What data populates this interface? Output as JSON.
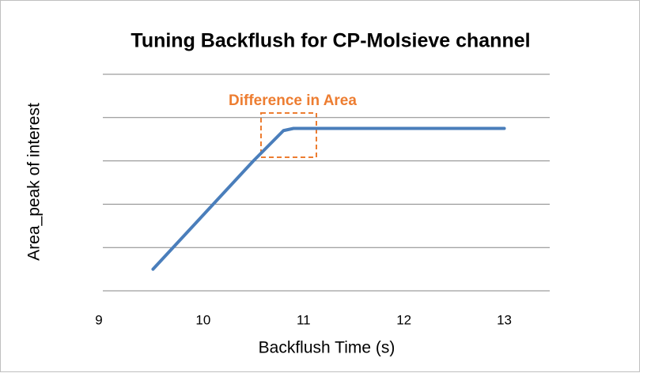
{
  "chart_data": {
    "type": "line",
    "title": "Tuning Backflush for CP-Molsieve channel",
    "x_label": "Backflush Time (s)",
    "y_label": "Area_peak of interest",
    "annotation": "Difference in Area",
    "x": [
      9.5,
      10,
      10.5,
      10.8,
      10.9,
      11,
      12,
      13
    ],
    "series": [
      {
        "color": "#4a7ebb",
        "values": [
          0.5,
          1.75,
          3.0,
          3.7,
          3.75,
          3.75,
          3.75,
          3.75
        ]
      }
    ],
    "xlim": [
      9,
      13.5
    ],
    "xticks": [
      9,
      10,
      11,
      12,
      13
    ],
    "ylim": [
      0,
      5
    ],
    "yticks": [
      0,
      1,
      2,
      3,
      4,
      5
    ],
    "grid": true,
    "ytick_labels": false
  }
}
